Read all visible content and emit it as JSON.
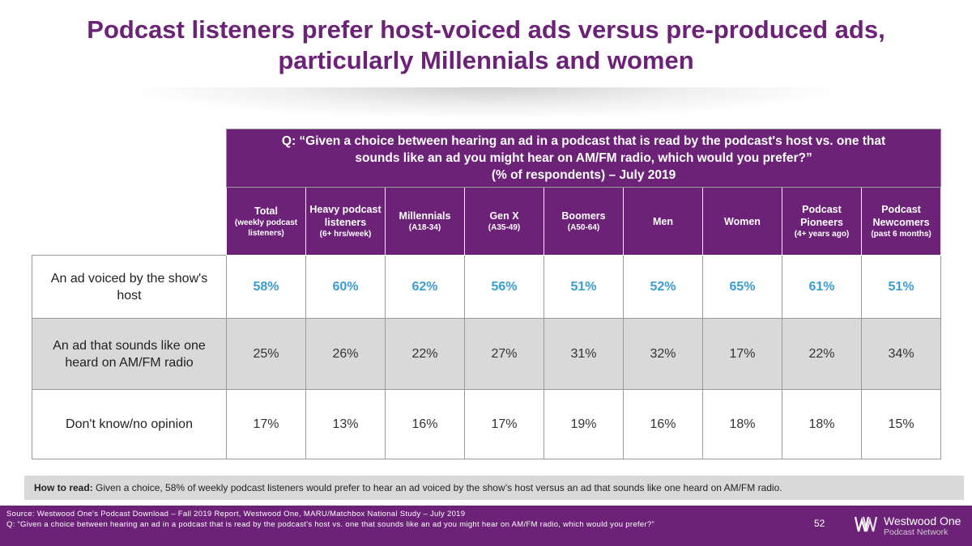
{
  "title": {
    "line1": "Podcast listeners prefer host-voiced ads versus pre-produced ads,",
    "line2": "particularly Millennials and women"
  },
  "question": {
    "line1": "Q: “Given a choice between hearing an ad in a podcast that is read by the podcast's host vs. one that",
    "line2": "sounds like an ad you might hear on AM/FM radio, which would you prefer?”",
    "line3": "(% of respondents) – July 2019"
  },
  "columns": [
    {
      "label": "Total",
      "sub": "(weekly podcast listeners)"
    },
    {
      "label": "Heavy podcast listeners",
      "sub": "(6+ hrs/week)"
    },
    {
      "label": "Millennials",
      "sub": "(A18-34)"
    },
    {
      "label": "Gen X",
      "sub": "(A35-49)"
    },
    {
      "label": "Boomers",
      "sub": "(A50-64)"
    },
    {
      "label": "Men",
      "sub": ""
    },
    {
      "label": "Women",
      "sub": ""
    },
    {
      "label": "Podcast Pioneers",
      "sub": "(4+ years ago)"
    },
    {
      "label": "Podcast Newcomers",
      "sub": "(past 6 months)"
    }
  ],
  "chart_data": {
    "type": "table",
    "title": "Podcast listeners prefer host-voiced ads versus pre-produced ads, particularly Millennials and women",
    "categories": [
      "Total",
      "Heavy podcast listeners",
      "Millennials",
      "Gen X",
      "Boomers",
      "Men",
      "Women",
      "Podcast Pioneers",
      "Podcast Newcomers"
    ],
    "series": [
      {
        "name": "An ad voiced by the show's host",
        "values": [
          58,
          60,
          62,
          56,
          51,
          52,
          65,
          61,
          51
        ]
      },
      {
        "name": "An ad that sounds like one heard on AM/FM radio",
        "values": [
          25,
          26,
          22,
          27,
          31,
          32,
          17,
          22,
          34
        ]
      },
      {
        "name": "Don't know/no opinion",
        "values": [
          17,
          13,
          16,
          17,
          19,
          16,
          18,
          18,
          15
        ]
      }
    ],
    "unit": "%"
  },
  "rows": [
    {
      "label": "An ad voiced by the show's host",
      "cells": [
        "58%",
        "60%",
        "62%",
        "56%",
        "51%",
        "52%",
        "65%",
        "61%",
        "51%"
      ]
    },
    {
      "label": "An ad that sounds like one heard on AM/FM radio",
      "cells": [
        "25%",
        "26%",
        "22%",
        "27%",
        "31%",
        "32%",
        "17%",
        "22%",
        "34%"
      ]
    },
    {
      "label": "Don't know/no opinion",
      "cells": [
        "17%",
        "13%",
        "16%",
        "17%",
        "19%",
        "16%",
        "18%",
        "18%",
        "15%"
      ]
    }
  ],
  "howto": {
    "label": "How to read:",
    "text": " Given a choice, 58% of weekly podcast listeners would prefer to hear an ad voiced by the show’s host versus an ad that sounds like one heard on AM/FM radio."
  },
  "footer": {
    "source_line1": "Source: Westwood One's Podcast Download – Fall 2019 Report, Westwood One, MARU/Matchbox National Study – July 2019",
    "source_line2": "Q: “Given a choice between hearing an ad in a podcast that is read by the podcast's host vs. one that sounds like an ad you might hear on AM/FM radio, which would you prefer?”",
    "page_number": "52",
    "logo_name": "Westwood One",
    "logo_tag": "Podcast Network"
  },
  "colors": {
    "brand": "#6b2277",
    "highlight": "#3a9dd2",
    "shade": "#d9d9d9"
  },
  "icons": {
    "logo": "westwood-one-logo-icon"
  }
}
